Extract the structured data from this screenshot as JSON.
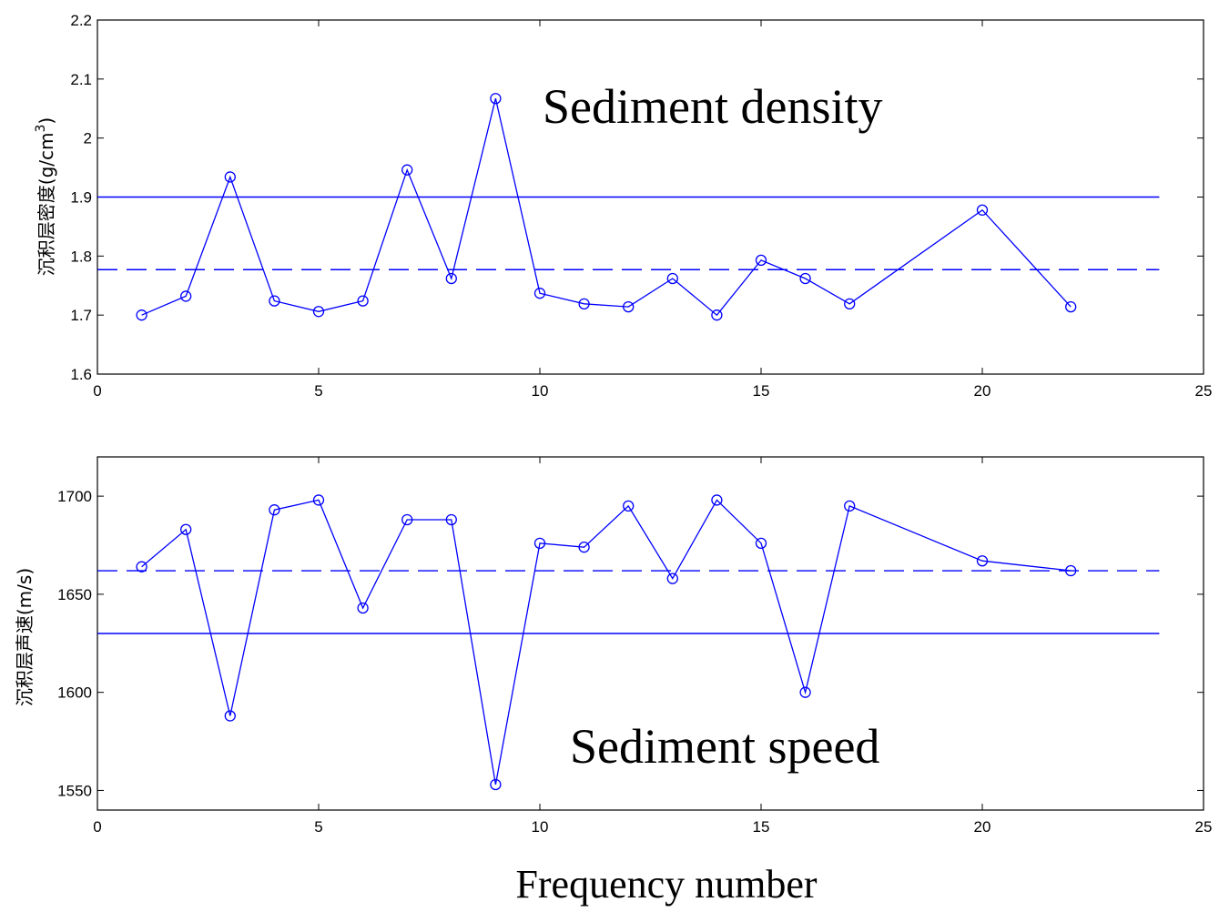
{
  "chart_data": [
    {
      "type": "line",
      "annotation": "Sediment density",
      "ylabel": "沉积层密度(g/cm",
      "ylabel_sup": "3",
      "ylabel_close": ")",
      "xlim": [
        0,
        25
      ],
      "ylim": [
        1.6,
        2.2
      ],
      "xticks": [
        0,
        5,
        10,
        15,
        20,
        25
      ],
      "yticks": [
        1.6,
        1.7,
        1.8,
        1.9,
        2,
        2.1,
        2.2
      ],
      "ytick_labels": [
        "1.6",
        "1.7",
        "1.8",
        "1.9",
        "2",
        "2.1",
        "2.2"
      ],
      "x": [
        1,
        2,
        3,
        4,
        5,
        6,
        7,
        8,
        9,
        10,
        11,
        12,
        13,
        14,
        15,
        16,
        17,
        20,
        22
      ],
      "y": [
        1.7,
        1.732,
        1.934,
        1.724,
        1.706,
        1.724,
        1.946,
        1.762,
        2.067,
        1.737,
        1.719,
        1.714,
        1.762,
        1.7,
        1.793,
        1.762,
        1.719,
        1.878,
        1.714
      ],
      "reference_lines": [
        {
          "style": "solid",
          "y": 1.9,
          "x": [
            0,
            24
          ]
        },
        {
          "style": "dashed",
          "y": 1.777,
          "x": [
            0,
            24
          ]
        }
      ],
      "color": "#0000ff"
    },
    {
      "type": "line",
      "annotation": "Sediment speed",
      "ylabel": "沉积层声速(m/s)",
      "xlim": [
        0,
        25
      ],
      "ylim": [
        1540,
        1720
      ],
      "xticks": [
        0,
        5,
        10,
        15,
        20,
        25
      ],
      "yticks": [
        1550,
        1600,
        1650,
        1700
      ],
      "ytick_labels": [
        "1550",
        "1600",
        "1650",
        "1700"
      ],
      "x": [
        1,
        2,
        3,
        4,
        5,
        6,
        7,
        8,
        9,
        10,
        11,
        12,
        13,
        14,
        15,
        16,
        17,
        20,
        22
      ],
      "y": [
        1664,
        1683,
        1588,
        1693,
        1698,
        1643,
        1688,
        1688,
        1553,
        1676,
        1674,
        1695,
        1658,
        1698,
        1676,
        1600,
        1695,
        1667,
        1662
      ],
      "reference_lines": [
        {
          "style": "solid",
          "y": 1630,
          "x": [
            0,
            24
          ]
        },
        {
          "style": "dashed",
          "y": 1662,
          "x": [
            0,
            24
          ]
        }
      ],
      "color": "#0000ff"
    }
  ],
  "figure": {
    "xlabel": "Frequency number"
  }
}
